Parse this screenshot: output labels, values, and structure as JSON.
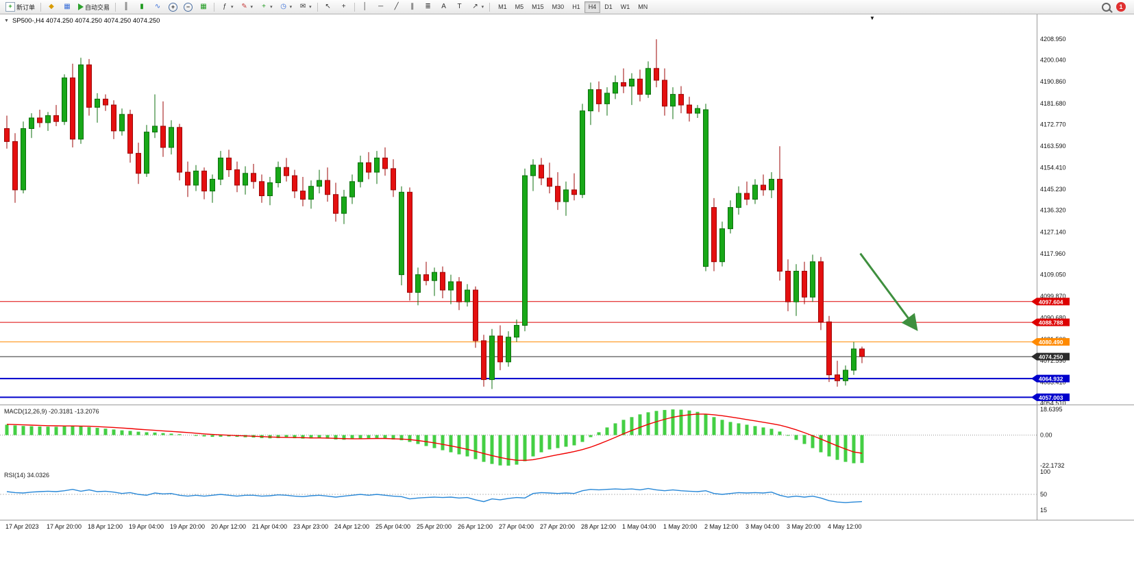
{
  "toolbar": {
    "new_order_label": "新订单",
    "autotrading_label": "自动交易",
    "timeframes": [
      "M1",
      "M5",
      "M15",
      "M30",
      "H1",
      "H4",
      "D1",
      "W1",
      "MN"
    ],
    "active_timeframe": "H4",
    "notification_count": "1"
  },
  "chart": {
    "title": "SP500-,H4 4074.250 4074.250 4074.250 4074.250",
    "symbol": "SP500-",
    "period": "H4",
    "ohlc": [
      "4074.250",
      "4074.250",
      "4074.250",
      "4074.250"
    ],
    "price_axis": [
      "4208.950",
      "4200.040",
      "4190.860",
      "4181.680",
      "4172.770",
      "4163.590",
      "4154.410",
      "4145.230",
      "4136.320",
      "4127.140",
      "4117.960",
      "4109.050",
      "4099.870",
      "4090.680",
      "4081.500",
      "4072.590",
      "4063.410",
      "4054.510"
    ],
    "hlines": [
      {
        "price": 4097.604,
        "label": "4097.604",
        "color": "#dd0000",
        "width": 1
      },
      {
        "price": 4088.788,
        "label": "4088.788",
        "color": "#dd0000",
        "width": 1
      },
      {
        "price": 4080.49,
        "label": "4080.490",
        "color": "#ff8a00",
        "width": 1
      },
      {
        "price": 4074.25,
        "label": "4074.250",
        "color": "#2b2b2b",
        "width": 1
      },
      {
        "price": 4064.932,
        "label": "4064.932",
        "color": "#0000cc",
        "width": 2
      },
      {
        "price": 4057.003,
        "label": "4057.003",
        "color": "#0000cc",
        "width": 2
      }
    ],
    "annotations": [
      {
        "type": "arrow",
        "from_index": 103.8,
        "from_price": 4118.0,
        "to_index": 110.5,
        "to_price": 4086.5,
        "color": "#3e8f3e",
        "width": 3
      }
    ]
  },
  "chart_data": {
    "type": "candlestick",
    "symbol": "SP500-",
    "timeframe": "H4",
    "candles": [
      [
        4171,
        4176.5,
        4162.5,
        4165.5
      ],
      [
        4165.5,
        4169,
        4139.5,
        4145
      ],
      [
        4145,
        4174,
        4143.5,
        4171
      ],
      [
        4171,
        4177.5,
        4167,
        4175.5
      ],
      [
        4175.5,
        4179,
        4171.5,
        4173.5
      ],
      [
        4173.5,
        4178,
        4170,
        4176.5
      ],
      [
        4176.5,
        4181,
        4172,
        4174
      ],
      [
        4174,
        4194,
        4172.5,
        4192.5
      ],
      [
        4192.5,
        4198.5,
        4163,
        4166.5
      ],
      [
        4166.5,
        4201,
        4164.5,
        4198
      ],
      [
        4198,
        4200.5,
        4176.5,
        4180
      ],
      [
        4180,
        4186,
        4173.5,
        4183.5
      ],
      [
        4183.5,
        4185.5,
        4178.5,
        4181
      ],
      [
        4181,
        4183,
        4166.5,
        4170
      ],
      [
        4170,
        4179.5,
        4168,
        4177
      ],
      [
        4177,
        4179,
        4156.5,
        4160.5
      ],
      [
        4160.5,
        4165,
        4147.5,
        4152
      ],
      [
        4152,
        4172.5,
        4150.5,
        4169.5
      ],
      [
        4169.5,
        4185.5,
        4167,
        4172
      ],
      [
        4172,
        4182.5,
        4159,
        4163
      ],
      [
        4163,
        4174.5,
        4160,
        4171.5
      ],
      [
        4171.5,
        4173,
        4149,
        4152.5
      ],
      [
        4152.5,
        4157,
        4142,
        4147
      ],
      [
        4147,
        4155.5,
        4144.5,
        4153
      ],
      [
        4153,
        4154.5,
        4141,
        4144.5
      ],
      [
        4144.5,
        4151.5,
        4139.5,
        4149.5
      ],
      [
        4149.5,
        4161.5,
        4147,
        4158.5
      ],
      [
        4158.5,
        4162,
        4150.5,
        4153.5
      ],
      [
        4153.5,
        4157,
        4144,
        4147
      ],
      [
        4147,
        4155,
        4143,
        4152
      ],
      [
        4152,
        4156,
        4145.5,
        4148.5
      ],
      [
        4148.5,
        4151.5,
        4139.5,
        4142.5
      ],
      [
        4142.5,
        4150.5,
        4138.5,
        4148
      ],
      [
        4148,
        4157,
        4146,
        4154.5
      ],
      [
        4154.5,
        4158.5,
        4148.5,
        4151
      ],
      [
        4151,
        4153.5,
        4141.5,
        4144.5
      ],
      [
        4144.5,
        4150.5,
        4138,
        4141
      ],
      [
        4141,
        4149,
        4137,
        4146.5
      ],
      [
        4146.5,
        4153.5,
        4143.5,
        4149
      ],
      [
        4149,
        4154.5,
        4140,
        4143
      ],
      [
        4143,
        4148,
        4131.5,
        4135
      ],
      [
        4135,
        4145,
        4130.5,
        4142
      ],
      [
        4142,
        4151.5,
        4139,
        4148.5
      ],
      [
        4148.5,
        4159.5,
        4146,
        4156.5
      ],
      [
        4156.5,
        4161,
        4149.5,
        4152.5
      ],
      [
        4152.5,
        4161.5,
        4147.5,
        4158.5
      ],
      [
        4158.5,
        4163,
        4151,
        4154
      ],
      [
        4154,
        4158,
        4142,
        4145
      ],
      [
        4109,
        4146.5,
        4104.5,
        4144
      ],
      [
        4144,
        4146,
        4098,
        4101.5
      ],
      [
        4101.5,
        4112,
        4096,
        4109
      ],
      [
        4109,
        4114.5,
        4104.5,
        4106.5
      ],
      [
        4106.5,
        4112,
        4100,
        4110
      ],
      [
        4110,
        4112.5,
        4099,
        4102.5
      ],
      [
        4102.5,
        4109,
        4096.5,
        4106
      ],
      [
        4106,
        4108,
        4094,
        4097.5
      ],
      [
        4097.5,
        4105,
        4095.5,
        4102.5
      ],
      [
        4102.5,
        4104,
        4078,
        4081
      ],
      [
        4081,
        4083.5,
        4061.5,
        4064.5
      ],
      [
        4064.5,
        4086,
        4060.5,
        4083
      ],
      [
        4083,
        4087.5,
        4068.5,
        4072
      ],
      [
        4072,
        4085,
        4070,
        4082.5
      ],
      [
        4082.5,
        4090,
        4080.5,
        4087.5
      ],
      [
        4087.5,
        4154,
        4085,
        4151
      ],
      [
        4151,
        4158,
        4144.5,
        4155.5
      ],
      [
        4155.5,
        4158.5,
        4147,
        4150
      ],
      [
        4150,
        4156.5,
        4143.5,
        4146.5
      ],
      [
        4146.5,
        4152.5,
        4136.5,
        4140
      ],
      [
        4140,
        4148.5,
        4134,
        4145
      ],
      [
        4145,
        4152,
        4140.5,
        4143
      ],
      [
        4143,
        4181.5,
        4141.5,
        4178.5
      ],
      [
        4178.5,
        4190.5,
        4172.5,
        4187.5
      ],
      [
        4187.5,
        4191,
        4178,
        4181.5
      ],
      [
        4181.5,
        4188.5,
        4176.5,
        4186
      ],
      [
        4186,
        4193.5,
        4183.5,
        4190.5
      ],
      [
        4190.5,
        4196.5,
        4186,
        4189
      ],
      [
        4189,
        4194.5,
        4181,
        4192
      ],
      [
        4192,
        4196,
        4182.5,
        4185.5
      ],
      [
        4185.5,
        4199.5,
        4184,
        4196.5
      ],
      [
        4196.5,
        4208.9,
        4188.5,
        4191.5
      ],
      [
        4191.5,
        4196.5,
        4176.5,
        4180.5
      ],
      [
        4180.5,
        4188.5,
        4175,
        4185.5
      ],
      [
        4185.5,
        4189,
        4177.5,
        4181
      ],
      [
        4181,
        4184.5,
        4174,
        4177.5
      ],
      [
        4177.5,
        4181,
        4175.5,
        4179.5
      ],
      [
        4112.5,
        4181.5,
        4110.5,
        4179
      ],
      [
        4137.5,
        4141.5,
        4110.5,
        4114.5
      ],
      [
        4114.5,
        4131.5,
        4112.5,
        4128.5
      ],
      [
        4128.5,
        4140.5,
        4126.5,
        4137.5
      ],
      [
        4137.5,
        4146.5,
        4134.5,
        4143.5
      ],
      [
        4143.5,
        4148.5,
        4138.5,
        4141
      ],
      [
        4141,
        4149.5,
        4139,
        4147
      ],
      [
        4147,
        4151.5,
        4142.5,
        4145
      ],
      [
        4145,
        4152.5,
        4141.5,
        4149.5
      ],
      [
        4149.5,
        4163.5,
        4106.5,
        4110.5
      ],
      [
        4110.5,
        4115.5,
        4093.5,
        4097.5
      ],
      [
        4097.5,
        4113.5,
        4091.5,
        4110.5
      ],
      [
        4110.5,
        4114.5,
        4096.5,
        4099.5
      ],
      [
        4099.5,
        4117.5,
        4097.5,
        4114.5
      ],
      [
        4114.5,
        4116.5,
        4085.5,
        4089
      ],
      [
        4089,
        4091.5,
        4063.5,
        4066.5
      ],
      [
        4066.5,
        4072.5,
        4061.5,
        4064
      ],
      [
        4064,
        4070.5,
        4062,
        4068.5
      ],
      [
        4068.5,
        4080.5,
        4066.5,
        4077.5
      ],
      [
        4077.5,
        4078.5,
        4071.5,
        4074.3
      ]
    ],
    "macd": {
      "label": "MACD(12,26,9) -20.3181 -13.2076",
      "max": 18.6395,
      "min": -22.1732,
      "axis": [
        "18.6395",
        "0.00",
        "-22.1732"
      ],
      "values": [
        7.5,
        7.0,
        6.6,
        6.4,
        6.2,
        6.1,
        6.0,
        6.3,
        6.6,
        6.2,
        5.8,
        5.2,
        4.6,
        4.0,
        3.4,
        3.0,
        2.4,
        2.0,
        1.8,
        1.4,
        1.0,
        0.6,
        0.0,
        -0.6,
        -1.0,
        -1.3,
        -1.2,
        -1.0,
        -1.3,
        -1.6,
        -1.8,
        -2.2,
        -2.4,
        -2.2,
        -2.0,
        -2.3,
        -2.6,
        -2.5,
        -2.3,
        -2.6,
        -3.2,
        -3.4,
        -3.0,
        -2.6,
        -2.4,
        -2.2,
        -2.5,
        -3.2,
        -3.8,
        -5.0,
        -6.5,
        -8.0,
        -9.5,
        -11.0,
        -12.5,
        -14.0,
        -15.5,
        -17.5,
        -19.5,
        -21.0,
        -22.0,
        -22.2,
        -21.5,
        -19.0,
        -15.5,
        -12.5,
        -10.5,
        -9.5,
        -8.5,
        -7.5,
        -5.0,
        -1.5,
        2.0,
        5.5,
        8.5,
        11.0,
        13.0,
        15.0,
        16.5,
        17.5,
        18.2,
        18.6,
        18.4,
        17.8,
        16.8,
        15.2,
        13.0,
        11.0,
        9.5,
        8.5,
        7.5,
        6.5,
        5.5,
        4.5,
        2.5,
        -0.5,
        -3.5,
        -6.5,
        -9.5,
        -12.5,
        -15.5,
        -18.0,
        -19.5,
        -20.5,
        -20.3
      ],
      "signal": [
        7.8,
        7.6,
        7.4,
        7.2,
        7.0,
        6.8,
        6.7,
        6.6,
        6.6,
        6.5,
        6.4,
        6.1,
        5.8,
        5.5,
        5.1,
        4.7,
        4.2,
        3.8,
        3.4,
        3.0,
        2.6,
        2.2,
        1.8,
        1.3,
        0.8,
        0.4,
        0.1,
        -0.1,
        -0.4,
        -0.6,
        -0.9,
        -1.1,
        -1.4,
        -1.6,
        -1.7,
        -1.8,
        -1.9,
        -2.1,
        -2.1,
        -2.2,
        -2.4,
        -2.6,
        -2.7,
        -2.7,
        -2.6,
        -2.5,
        -2.5,
        -2.7,
        -2.9,
        -3.3,
        -4.0,
        -4.8,
        -5.7,
        -6.8,
        -7.9,
        -9.1,
        -10.4,
        -11.8,
        -13.4,
        -14.9,
        -16.3,
        -17.5,
        -18.3,
        -18.4,
        -17.9,
        -16.8,
        -15.5,
        -14.3,
        -13.2,
        -12.0,
        -10.6,
        -8.8,
        -6.6,
        -4.2,
        -1.7,
        0.9,
        3.3,
        5.6,
        7.8,
        9.7,
        11.4,
        12.9,
        14.0,
        14.7,
        15.2,
        15.2,
        14.7,
        14.0,
        13.1,
        12.2,
        11.2,
        10.3,
        9.3,
        8.3,
        7.2,
        5.6,
        3.8,
        1.7,
        -0.5,
        -2.9,
        -5.4,
        -7.9,
        -10.2,
        -12.3,
        -13.2
      ]
    },
    "rsi": {
      "label": "RSI(14) 34.0326",
      "value": 34.0326,
      "axis": [
        "100",
        "50",
        "15"
      ],
      "values": [
        56,
        54,
        53,
        55,
        56,
        57,
        56,
        58,
        61,
        57,
        60,
        56,
        57,
        55,
        52,
        54,
        50,
        48,
        53,
        51,
        52,
        48,
        46,
        48,
        46,
        48,
        50,
        48,
        46,
        48,
        48,
        46,
        47,
        49,
        48,
        46,
        45,
        47,
        48,
        46,
        44,
        46,
        48,
        50,
        48,
        50,
        48,
        46,
        45,
        40,
        42,
        43,
        44,
        43,
        44,
        42,
        43,
        38,
        34,
        40,
        38,
        41,
        43,
        42,
        52,
        54,
        53,
        52,
        53,
        52,
        58,
        61,
        60,
        61,
        62,
        61,
        62,
        60,
        63,
        60,
        58,
        60,
        58,
        57,
        56,
        58,
        52,
        50,
        52,
        54,
        53,
        54,
        53,
        55,
        48,
        44,
        46,
        44,
        46,
        42,
        36,
        33,
        32,
        33,
        34
      ]
    },
    "time_axis": [
      "17 Apr 2023",
      "17 Apr 20:00",
      "18 Apr 12:00",
      "19 Apr 04:00",
      "19 Apr 20:00",
      "20 Apr 12:00",
      "21 Apr 04:00",
      "23 Apr 23:00",
      "24 Apr 12:00",
      "25 Apr 04:00",
      "25 Apr 20:00",
      "26 Apr 12:00",
      "27 Apr 04:00",
      "27 Apr 20:00",
      "28 Apr 12:00",
      "1 May 04:00",
      "1 May 20:00",
      "2 May 12:00",
      "3 May 04:00",
      "3 May 20:00",
      "4 May 12:00"
    ]
  },
  "icons": {
    "collapse": "▼",
    "marker": "▼",
    "dropdown": "▾",
    "new_order": "+",
    "alerts": "◆",
    "market_watch": "▦",
    "bars": "║",
    "candles": "▮",
    "line": "∿",
    "zoom_in": "+",
    "zoom_out": "−",
    "tile": "▦",
    "indicators": "ƒ",
    "objects": "✎",
    "add": "+",
    "period": "◷",
    "mail": "✉",
    "cursor": "↖",
    "crosshair": "+",
    "vline": "│",
    "hline": "─",
    "trendline": "╱",
    "channel": "∥",
    "fibo": "≣",
    "text": "A",
    "label_tool": "T",
    "shapes": "↗"
  },
  "colors": {
    "candle_up": "#18a818",
    "candle_up_edge": "#0c6f0c",
    "candle_down": "#e41010",
    "candle_down_edge": "#9c0606",
    "macd_hist": "#44cf44",
    "macd_signal": "#f00000",
    "rsi_line": "#2787d7",
    "pane_border": "#9a9a9a",
    "axis_text": "#111111"
  }
}
